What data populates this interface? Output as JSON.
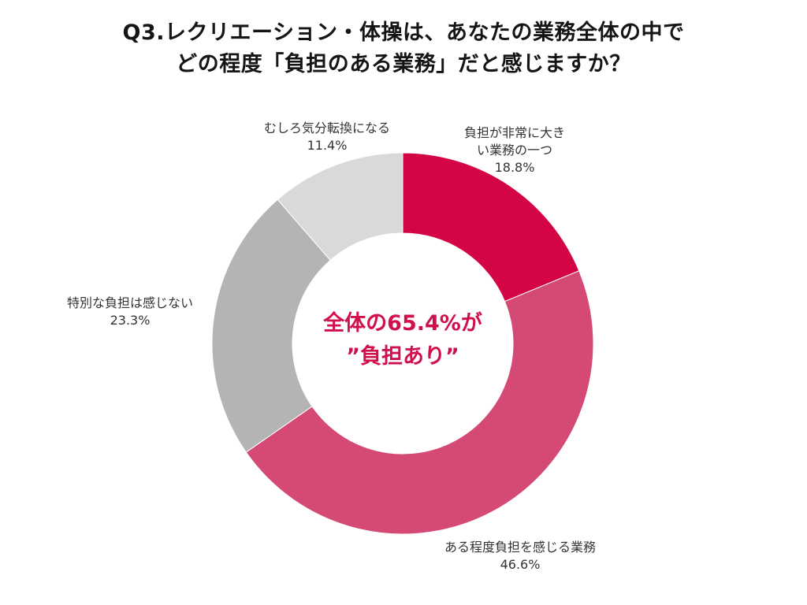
{
  "title": {
    "line1": "Q3.レクリエーション・体操は、あなたの業務全体の中で",
    "line2": "どの程度「負担のある業務」だと感じますか？"
  },
  "center_text": {
    "line1": "全体の65.4%が",
    "line2": "”負担あり”"
  },
  "labels": {
    "s0": {
      "line1": "負担が非常に大き",
      "line2": "い業務の一つ",
      "value": "18.8%"
    },
    "s1": {
      "line1": "ある程度負担を感じる業務",
      "value": "46.6%"
    },
    "s2": {
      "line1": "特別な負担は感じない",
      "value": "23.3%"
    },
    "s3": {
      "line1": "むしろ気分転換になる",
      "value": "11.4%"
    }
  },
  "chart_data": {
    "type": "pie",
    "subtype": "donut",
    "title": "Q3.レクリエーション・体操は、あなたの業務全体の中でどの程度「負担のある業務」だと感じますか？",
    "categories": [
      "負担が非常に大きい業務の一つ",
      "ある程度負担を感じる業務",
      "特別な負担は感じない",
      "むしろ気分転換になる"
    ],
    "values": [
      18.8,
      46.6,
      23.3,
      11.4
    ],
    "unit": "%",
    "colors": [
      "#D40545",
      "#D44A74",
      "#B4B4B4",
      "#D9D9D9"
    ],
    "start_angle": "12 o'clock, clockwise",
    "annotation": "全体の65.4%が”負担あり”",
    "legend": "none (direct labels)"
  }
}
